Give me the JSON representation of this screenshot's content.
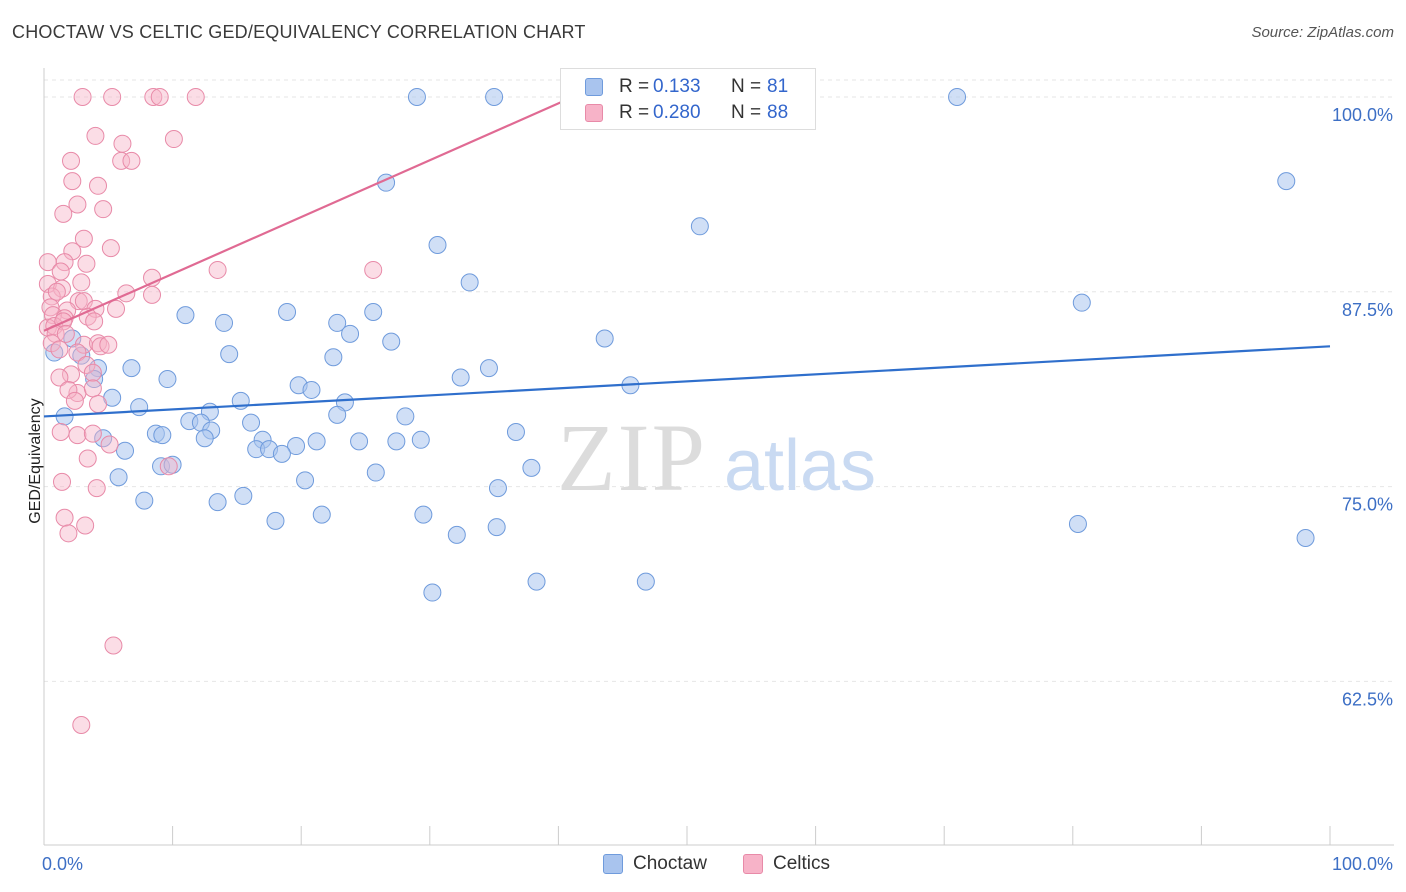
{
  "title": "CHOCTAW VS CELTIC GED/EQUIVALENCY CORRELATION CHART",
  "source": "Source: ZipAtlas.com",
  "watermark": {
    "zip": "ZIP",
    "atlas": "atlas"
  },
  "legend": {
    "series": [
      {
        "r_label": "R =",
        "r_value": "0.133",
        "n_label": "N =",
        "n_value": "81"
      },
      {
        "r_label": "R =",
        "r_value": "0.280",
        "n_label": "N =",
        "n_value": "88"
      }
    ]
  },
  "bottom_legend": [
    "Choctaw",
    "Celtics"
  ],
  "chart_data": {
    "type": "scatter",
    "title": "CHOCTAW VS CELTIC GED/EQUIVALENCY CORRELATION CHART",
    "xlabel": "",
    "ylabel": "GED/Equivalency",
    "xlim": [
      0,
      100
    ],
    "ylim": [
      52,
      102.5
    ],
    "x_tick_labels": [
      "0.0%",
      "100.0%"
    ],
    "y_ticks": [
      62.5,
      75.0,
      87.5,
      100.0
    ],
    "y_tick_labels": [
      "62.5%",
      "75.0%",
      "87.5%",
      "100.0%"
    ],
    "grid": true,
    "legend_position": "top-center",
    "colors": {
      "choctaw_fill": "#a9c4ee",
      "choctaw_edge": "#6f9bdc",
      "choctaw_line": "#2f6fcc",
      "celtics_fill": "#f7b3c8",
      "celtics_edge": "#e88aa8",
      "celtics_line": "#e06a93",
      "axis_text": "#3d6fc5"
    },
    "series": [
      {
        "name": "Choctaw",
        "trend": {
          "x": [
            0,
            100
          ],
          "y": [
            79.5,
            84.0
          ]
        },
        "points": [
          [
            29,
            100
          ],
          [
            35,
            100
          ],
          [
            71,
            100
          ],
          [
            26.6,
            94.5
          ],
          [
            51,
            91.7
          ],
          [
            96.6,
            94.6
          ],
          [
            30.6,
            90.5
          ],
          [
            33.1,
            88.1
          ],
          [
            80.7,
            86.8
          ],
          [
            11,
            86
          ],
          [
            14,
            85.5
          ],
          [
            18.9,
            86.2
          ],
          [
            25.6,
            86.2
          ],
          [
            22.8,
            85.5
          ],
          [
            23.8,
            84.8
          ],
          [
            27,
            84.3
          ],
          [
            43.6,
            84.5
          ],
          [
            0.8,
            83.6
          ],
          [
            2.2,
            84.5
          ],
          [
            14.4,
            83.5
          ],
          [
            22.5,
            83.3
          ],
          [
            2.9,
            83.4
          ],
          [
            4.2,
            82.6
          ],
          [
            6.8,
            82.6
          ],
          [
            34.6,
            82.6
          ],
          [
            3.9,
            81.9
          ],
          [
            9.6,
            81.9
          ],
          [
            19.8,
            81.5
          ],
          [
            20.8,
            81.2
          ],
          [
            32.4,
            82
          ],
          [
            45.6,
            81.5
          ],
          [
            5.3,
            80.7
          ],
          [
            15.3,
            80.5
          ],
          [
            23.4,
            80.4
          ],
          [
            7.4,
            80.1
          ],
          [
            12.9,
            79.8
          ],
          [
            1.6,
            79.5
          ],
          [
            11.3,
            79.2
          ],
          [
            12.2,
            79.1
          ],
          [
            16.1,
            79.1
          ],
          [
            28.1,
            79.5
          ],
          [
            22.8,
            79.6
          ],
          [
            13,
            78.6
          ],
          [
            8.7,
            78.4
          ],
          [
            9.2,
            78.3
          ],
          [
            12.5,
            78.1
          ],
          [
            4.6,
            78.1
          ],
          [
            17,
            78
          ],
          [
            21.2,
            77.9
          ],
          [
            24.5,
            77.9
          ],
          [
            27.4,
            77.9
          ],
          [
            29.3,
            78
          ],
          [
            36.7,
            78.5
          ],
          [
            6.3,
            77.3
          ],
          [
            16.5,
            77.4
          ],
          [
            17.5,
            77.4
          ],
          [
            19.6,
            77.6
          ],
          [
            18.5,
            77.1
          ],
          [
            9.1,
            76.3
          ],
          [
            10,
            76.4
          ],
          [
            37.9,
            76.2
          ],
          [
            5.8,
            75.6
          ],
          [
            20.3,
            75.4
          ],
          [
            25.8,
            75.9
          ],
          [
            35.3,
            74.9
          ],
          [
            7.8,
            74.1
          ],
          [
            13.5,
            74
          ],
          [
            15.5,
            74.4
          ],
          [
            29.5,
            73.2
          ],
          [
            18,
            72.8
          ],
          [
            21.6,
            73.2
          ],
          [
            35.2,
            72.4
          ],
          [
            32.1,
            71.9
          ],
          [
            80.4,
            72.6
          ],
          [
            98.1,
            71.7
          ],
          [
            38.3,
            68.9
          ],
          [
            46.8,
            68.9
          ],
          [
            30.2,
            68.2
          ]
        ]
      },
      {
        "name": "Celtics",
        "trend": {
          "x": [
            0,
            42.5
          ],
          "y": [
            85.0,
            100.5
          ]
        },
        "points": [
          [
            3,
            100
          ],
          [
            5.3,
            100
          ],
          [
            8.5,
            100
          ],
          [
            9,
            100
          ],
          [
            11.8,
            100
          ],
          [
            4,
            97.5
          ],
          [
            6.1,
            97
          ],
          [
            10.1,
            97.3
          ],
          [
            2.1,
            95.9
          ],
          [
            6,
            95.9
          ],
          [
            6.8,
            95.9
          ],
          [
            2.2,
            94.6
          ],
          [
            4.2,
            94.3
          ],
          [
            2.6,
            93.1
          ],
          [
            4.6,
            92.8
          ],
          [
            1.5,
            92.5
          ],
          [
            3.1,
            90.9
          ],
          [
            5.2,
            90.3
          ],
          [
            2.2,
            90.1
          ],
          [
            1.6,
            89.4
          ],
          [
            3.3,
            89.3
          ],
          [
            0.3,
            89.4
          ],
          [
            8.4,
            88.4
          ],
          [
            13.5,
            88.9
          ],
          [
            25.6,
            88.9
          ],
          [
            1.3,
            88.8
          ],
          [
            0.3,
            88
          ],
          [
            1.4,
            87.7
          ],
          [
            2.9,
            88.1
          ],
          [
            6.4,
            87.4
          ],
          [
            8.4,
            87.3
          ],
          [
            0.6,
            87.2
          ],
          [
            1,
            87.5
          ],
          [
            2.7,
            86.9
          ],
          [
            3.1,
            86.9
          ],
          [
            5.6,
            86.4
          ],
          [
            0.5,
            86.5
          ],
          [
            1.8,
            86.3
          ],
          [
            4,
            86.4
          ],
          [
            0.7,
            86
          ],
          [
            1.6,
            85.8
          ],
          [
            3.4,
            85.9
          ],
          [
            0.3,
            85.2
          ],
          [
            0.8,
            85.3
          ],
          [
            1.5,
            85.6
          ],
          [
            3.9,
            85.6
          ],
          [
            0.9,
            84.8
          ],
          [
            1.7,
            84.8
          ],
          [
            0.6,
            84.2
          ],
          [
            3.1,
            84.1
          ],
          [
            4.2,
            84.2
          ],
          [
            4.4,
            84
          ],
          [
            5,
            84.1
          ],
          [
            1.2,
            83.8
          ],
          [
            2.6,
            83.6
          ],
          [
            3.3,
            82.8
          ],
          [
            2.1,
            82.2
          ],
          [
            3.8,
            82.3
          ],
          [
            1.2,
            82
          ],
          [
            2.6,
            81
          ],
          [
            3.8,
            81.3
          ],
          [
            1.9,
            81.2
          ],
          [
            2.4,
            80.5
          ],
          [
            4.2,
            80.3
          ],
          [
            1.3,
            78.5
          ],
          [
            2.6,
            78.3
          ],
          [
            3.8,
            78.4
          ],
          [
            5.1,
            77.7
          ],
          [
            3.4,
            76.8
          ],
          [
            1.4,
            75.3
          ],
          [
            4.1,
            74.9
          ],
          [
            1.6,
            73
          ],
          [
            3.2,
            72.5
          ],
          [
            1.9,
            72
          ],
          [
            9.7,
            76.3
          ],
          [
            5.4,
            64.8
          ],
          [
            2.9,
            59.7
          ]
        ]
      }
    ]
  }
}
